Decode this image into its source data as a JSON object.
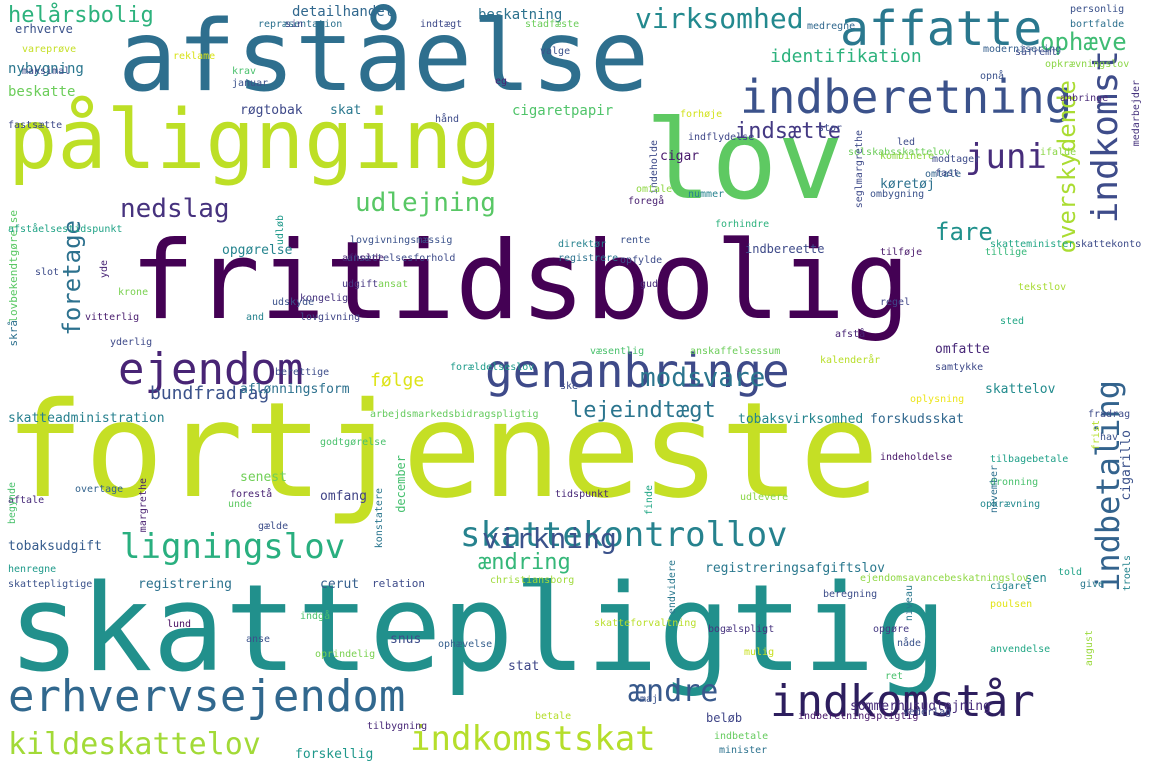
{
  "title": "",
  "words": [
    {
      "text": "fortjeneste",
      "color": "#c5df25"
    },
    {
      "text": "skattepligtig",
      "color": "#21908c"
    },
    {
      "text": "fritidsbolig",
      "color": "#440154"
    },
    {
      "text": "afståelse",
      "color": "#2e6f8e"
    },
    {
      "text": "pålignging",
      "color": "#bddf26"
    },
    {
      "text": "lov",
      "color": "#5ec962"
    },
    {
      "text": "indberetning",
      "color": "#3b528b"
    },
    {
      "text": "affatte",
      "color": "#2a788e"
    },
    {
      "text": "genanbringe",
      "color": "#3e4a89"
    },
    {
      "text": "ejendom",
      "color": "#482475"
    },
    {
      "text": "erhvervsejendom",
      "color": "#31688e"
    },
    {
      "text": "indkomstår",
      "color": "#2d1e5e"
    },
    {
      "text": "skattekontrollov",
      "color": "#26828e"
    },
    {
      "text": "ligningslov",
      "color": "#29af7f"
    },
    {
      "text": "indkomstskat",
      "color": "#b5de2b"
    },
    {
      "text": "kildeskattelov",
      "color": "#a2da37"
    },
    {
      "text": "indkomst",
      "color": "#3e4c8a"
    },
    {
      "text": "indbetaling",
      "color": "#33638d"
    },
    {
      "text": "juni",
      "color": "#472d7b"
    },
    {
      "text": "virksomhed",
      "color": "#23898e"
    },
    {
      "text": "udlejning",
      "color": "#58c765"
    },
    {
      "text": "nedslag",
      "color": "#46327e"
    },
    {
      "text": "foretage",
      "color": "#2c718e"
    },
    {
      "text": "overskydende",
      "color": "#aadc32"
    },
    {
      "text": "modsvare",
      "color": "#2b758e"
    },
    {
      "text": "virkning",
      "color": "#3b528b"
    },
    {
      "text": "ændre",
      "color": "#38598c"
    },
    {
      "text": "lejeindtægt",
      "color": "#2b758e"
    },
    {
      "text": "fare",
      "color": "#21918c"
    },
    {
      "text": "indsætte",
      "color": "#443983"
    },
    {
      "text": "ophæve",
      "color": "#3fbc73"
    },
    {
      "text": "identifikation",
      "color": "#2db27d"
    },
    {
      "text": "ændring",
      "color": "#35b779"
    },
    {
      "text": "bundfradrag",
      "color": "#3b528b"
    },
    {
      "text": "følge",
      "color": "#dde318"
    },
    {
      "text": "helårsbolig",
      "color": "#2db27d"
    },
    {
      "text": "detailhandel",
      "color": "#31688e"
    },
    {
      "text": "beskatning",
      "color": "#2c728e"
    },
    {
      "text": "nybygning",
      "color": "#2a768e"
    },
    {
      "text": "beskatte",
      "color": "#6ccd5a"
    },
    {
      "text": "røgtobak",
      "color": "#3e4989"
    },
    {
      "text": "skat",
      "color": "#2a788e"
    },
    {
      "text": "cigaretpapir",
      "color": "#50c46a"
    },
    {
      "text": "cigar",
      "color": "#481a6c"
    },
    {
      "text": "køretøj",
      "color": "#2d718e"
    },
    {
      "text": "opgørelse",
      "color": "#25848e"
    },
    {
      "text": "aflønningsform",
      "color": "#2d718e"
    },
    {
      "text": "skatteadministration",
      "color": "#27808e"
    },
    {
      "text": "tobaksvirksomhed",
      "color": "#25848e"
    },
    {
      "text": "forskudsskat",
      "color": "#31688e"
    },
    {
      "text": "omfatte",
      "color": "#482878"
    },
    {
      "text": "skattelov",
      "color": "#228b8d"
    },
    {
      "text": "registreringsafgiftslov",
      "color": "#2a788e"
    },
    {
      "text": "tobaksudgift",
      "color": "#365c8d"
    },
    {
      "text": "registrering",
      "color": "#2c728e"
    },
    {
      "text": "cerut",
      "color": "#355f8d"
    },
    {
      "text": "senest",
      "color": "#70cf57"
    },
    {
      "text": "omfang",
      "color": "#414487"
    },
    {
      "text": "stat",
      "color": "#3f4788"
    },
    {
      "text": "beløb",
      "color": "#404688"
    },
    {
      "text": "snus",
      "color": "#3d4d8a"
    },
    {
      "text": "sommerhusudlejning",
      "color": "#472c7a"
    },
    {
      "text": "forskellig",
      "color": "#1f988b"
    },
    {
      "text": "december",
      "color": "#46c06f"
    },
    {
      "text": "cigarillo",
      "color": "#3b528b"
    },
    {
      "text": "sen",
      "color": "#23898e"
    },
    {
      "text": "lovbekendtgørelse",
      "color": "#5ac864"
    },
    {
      "text": "afståelsestidspunkt",
      "color": "#20a386"
    },
    {
      "text": "lovgivningsmæssig",
      "color": "#3b528b"
    },
    {
      "text": "ansættelsesforhold",
      "color": "#3e4c8a"
    },
    {
      "text": "afholde",
      "color": "#482173"
    },
    {
      "text": "udgift",
      "color": "#453781"
    },
    {
      "text": "kongelig",
      "color": "#46337e"
    },
    {
      "text": "lovgivning",
      "color": "#404688"
    },
    {
      "text": "vitterlig",
      "color": "#481c6e"
    },
    {
      "text": "krone",
      "color": "#7ad151"
    },
    {
      "text": "skrå",
      "color": "#2d718e"
    },
    {
      "text": "yderlig",
      "color": "#3e4a89"
    },
    {
      "text": "berettige",
      "color": "#3d4d8a"
    },
    {
      "text": "forældelseslov",
      "color": "#1e9b8a"
    },
    {
      "text": "arbejdsmarkedsbidragspligtig",
      "color": "#65cb5e"
    },
    {
      "text": "godtgørelse",
      "color": "#4ac16d"
    },
    {
      "text": "indbereette",
      "color": "#3e4a89"
    },
    {
      "text": "rente",
      "color": "#3b528b"
    },
    {
      "text": "opfylde",
      "color": "#3e4c8a"
    },
    {
      "text": "direktør",
      "color": "#26828e"
    },
    {
      "text": "registrere",
      "color": "#2c728e"
    },
    {
      "text": "gud",
      "color": "#472a7a"
    },
    {
      "text": "regel",
      "color": "#404688"
    },
    {
      "text": "tilføje",
      "color": "#48186a"
    },
    {
      "text": "tillige",
      "color": "#35b779"
    },
    {
      "text": "skatteminister",
      "color": "#21a685"
    },
    {
      "text": "tekstlov",
      "color": "#a8db34"
    },
    {
      "text": "sted",
      "color": "#22a785"
    },
    {
      "text": "afstå",
      "color": "#482475"
    },
    {
      "text": "anskaffelsessum",
      "color": "#6ccd5a"
    },
    {
      "text": "væsentlig",
      "color": "#4ac16d"
    },
    {
      "text": "kalenderår",
      "color": "#b8de29"
    },
    {
      "text": "samtykke",
      "color": "#3e4989"
    },
    {
      "text": "oplysning",
      "color": "#ece51b"
    },
    {
      "text": "indeholdelse",
      "color": "#481769"
    },
    {
      "text": "tilbagebetale",
      "color": "#1fa088"
    },
    {
      "text": "frist",
      "color": "#b5de2b"
    },
    {
      "text": "hav",
      "color": "#3b528b"
    },
    {
      "text": "fradrag",
      "color": "#3e4c8a"
    },
    {
      "text": "unde",
      "color": "#5ec962"
    },
    {
      "text": "konstatere",
      "color": "#2a768e"
    },
    {
      "text": "forestå",
      "color": "#482173"
    },
    {
      "text": "finde",
      "color": "#22a785"
    },
    {
      "text": "tidspunkt",
      "color": "#482878"
    },
    {
      "text": "udlevere",
      "color": "#8bd646"
    },
    {
      "text": "opkrævning",
      "color": "#23898e"
    },
    {
      "text": "dronning",
      "color": "#4ac16d"
    },
    {
      "text": "november",
      "color": "#2d708e"
    },
    {
      "text": "margrethe",
      "color": "#481f70"
    },
    {
      "text": "overtage",
      "color": "#33638d"
    },
    {
      "text": "gælde",
      "color": "#3d4e8a"
    },
    {
      "text": "aftale",
      "color": "#472a7a"
    },
    {
      "text": "begynde",
      "color": "#4ac16d"
    },
    {
      "text": "henregne",
      "color": "#1f9a8a"
    },
    {
      "text": "skattepligtige",
      "color": "#3b528b"
    },
    {
      "text": "christiansborg",
      "color": "#9fda3a"
    },
    {
      "text": "relation",
      "color": "#3e4c8a"
    },
    {
      "text": "ejendomsavancebeskatningslov",
      "color": "#8fd744"
    },
    {
      "text": "beregning",
      "color": "#3d4d8a"
    },
    {
      "text": "cigaret",
      "color": "#26828e"
    },
    {
      "text": "poulsen",
      "color": "#e2e418"
    },
    {
      "text": "told",
      "color": "#20a386"
    },
    {
      "text": "give",
      "color": "#2a788e"
    },
    {
      "text": "troels",
      "color": "#25848e"
    },
    {
      "text": "skatteforvaltning",
      "color": "#b8de29"
    },
    {
      "text": "lund",
      "color": "#470d60"
    },
    {
      "text": "anse",
      "color": "#3b528b"
    },
    {
      "text": "indgå",
      "color": "#4ac16d"
    },
    {
      "text": "oprindelig",
      "color": "#7ad151"
    },
    {
      "text": "ophævelse",
      "color": "#355f8d"
    },
    {
      "text": "endvidere",
      "color": "#2a788e"
    },
    {
      "text": "bogælspligt",
      "color": "#46327e"
    },
    {
      "text": "mulig",
      "color": "#c8e020"
    },
    {
      "text": "opgøre",
      "color": "#443983"
    },
    {
      "text": "nåde",
      "color": "#3b528b"
    },
    {
      "text": "niveau",
      "color": "#2a788e"
    },
    {
      "text": "anvendelse",
      "color": "#22a785"
    },
    {
      "text": "august",
      "color": "#9bd93c"
    },
    {
      "text": "ret",
      "color": "#4ac16d"
    },
    {
      "text": "indberetningspligtig",
      "color": "#48186a"
    },
    {
      "text": "vederlag",
      "color": "#3e4a89"
    },
    {
      "text": "indbetale",
      "color": "#65cb5e"
    },
    {
      "text": "minister",
      "color": "#2c728e"
    },
    {
      "text": "betale",
      "color": "#b5de2b"
    },
    {
      "text": "tilbygning",
      "color": "#482878"
    },
    {
      "text": "erhverve",
      "color": "#3b528b"
    },
    {
      "text": "vareprøve",
      "color": "#c5df25"
    },
    {
      "text": "maksimal",
      "color": "#3e4a89"
    },
    {
      "text": "fastsætte",
      "color": "#3e4989"
    },
    {
      "text": "repræsentation",
      "color": "#2c718e"
    },
    {
      "text": "sin",
      "color": "#3f4788"
    },
    {
      "text": "reklame",
      "color": "#d8e219"
    },
    {
      "text": "krav",
      "color": "#4ac16d"
    },
    {
      "text": "januar",
      "color": "#3b528b"
    },
    {
      "text": "indtægt",
      "color": "#3e4a89"
    },
    {
      "text": "stadfæste",
      "color": "#6ccd5a"
    },
    {
      "text": "valge",
      "color": "#3b528b"
    },
    {
      "text": "eg",
      "color": "#482475"
    },
    {
      "text": "medregne",
      "color": "#31688e"
    },
    {
      "text": "personlig",
      "color": "#3b528b"
    },
    {
      "text": "bortfalde",
      "color": "#2d708e"
    },
    {
      "text": "modernisering",
      "color": "#355f8d"
    },
    {
      "text": "såfremt",
      "color": "#3e4c8a"
    },
    {
      "text": "opnå",
      "color": "#3b528b"
    },
    {
      "text": "opkrævningslov",
      "color": "#8bd646"
    },
    {
      "text": "anbringe",
      "color": "#482878"
    },
    {
      "text": "medarbejder",
      "color": "#46337e"
    },
    {
      "text": "hånd",
      "color": "#3e4c8a"
    },
    {
      "text": "forhøje",
      "color": "#d2e21b"
    },
    {
      "text": "indeholde",
      "color": "#3e4a89"
    },
    {
      "text": "indflydelse",
      "color": "#3f4788"
    },
    {
      "text": "stor",
      "color": "#3e4c8a"
    },
    {
      "text": "selskabsskattelov",
      "color": "#6ccd5a"
    },
    {
      "text": "seglmargrethe",
      "color": "#3e4a89"
    },
    {
      "text": "kombinere",
      "color": "#8fd744"
    },
    {
      "text": "led",
      "color": "#3e4c8a"
    },
    {
      "text": "ifalde",
      "color": "#8bd646"
    },
    {
      "text": "modtager",
      "color": "#3e4c8a"
    },
    {
      "text": "omtale",
      "color": "#33638d"
    },
    {
      "text": "omtale",
      "color": "#8fd744"
    },
    {
      "text": "foregå",
      "color": "#481f70"
    },
    {
      "text": "nummer",
      "color": "#26828e"
    },
    {
      "text": "fast",
      "color": "#3e4c8a"
    },
    {
      "text": "ombygning",
      "color": "#3b528b"
    },
    {
      "text": "forhindre",
      "color": "#2db27d"
    },
    {
      "text": "skattekonto",
      "color": "#3e4c8a"
    },
    {
      "text": "udløb",
      "color": "#1f998a"
    },
    {
      "text": "slot",
      "color": "#3e4c8a"
    },
    {
      "text": "yde",
      "color": "#482475"
    },
    {
      "text": "udskyde",
      "color": "#3b528b"
    },
    {
      "text": "and",
      "color": "#26828e"
    },
    {
      "text": "ske",
      "color": "#3e4c8a"
    },
    {
      "text": "maj",
      "color": "#3b528b"
    },
    {
      "text": "ansat",
      "color": "#7ad151"
    },
    {
      "text": "år",
      "color": "#b5de2b"
    },
    {
      "text": "ble",
      "color": "#3b528b"
    }
  ]
}
